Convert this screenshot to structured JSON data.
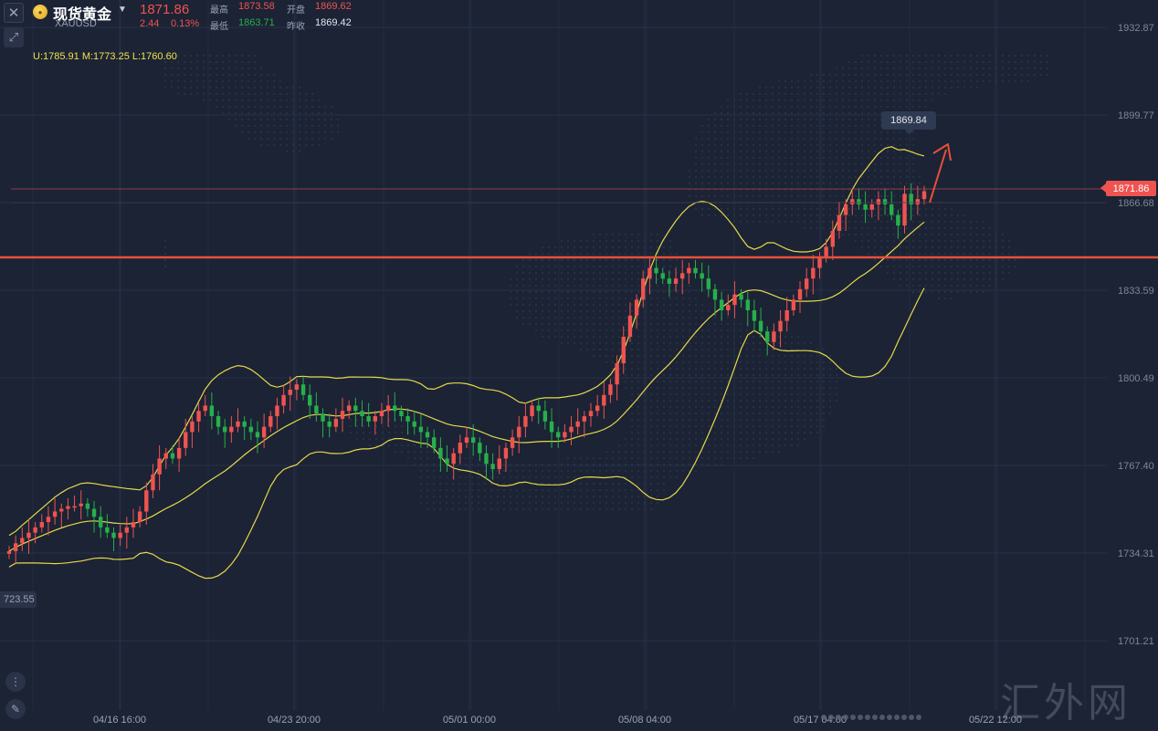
{
  "header": {
    "symbol_name": "现货黄金",
    "symbol_code": "XAUUSD",
    "last_price": "1871.86",
    "change": "2.44",
    "change_pct": "0.13%",
    "high_label": "最高",
    "high_value": "1873.58",
    "open_label": "开盘",
    "open_value": "1869.62",
    "low_label": "最低",
    "low_value": "1863.71",
    "prev_close_label": "昨收",
    "prev_close_value": "1869.42"
  },
  "indicator_readout": {
    "upper": "U:1785.91",
    "middle": "M:1773.25",
    "lower": "L:1760.60"
  },
  "current_price_tag": "1871.86",
  "high_tooltip": "1869.84",
  "left_axis_label": "723.55",
  "watermark": "汇外网",
  "colors": {
    "background": "#1b2335",
    "up": "#ef5350",
    "down": "#26b04a",
    "band": "#e7d94a",
    "resistance": "#e8503a"
  },
  "chart_data": {
    "type": "candlestick",
    "indicator": "Bollinger Bands",
    "y_ticks": [
      "1932.87",
      "1899.77",
      "1866.68",
      "1833.59",
      "1800.49",
      "1767.40",
      "1734.31",
      "1701.21"
    ],
    "x_ticks": [
      "04/16 16:00",
      "04/23 20:00",
      "05/01 00:00",
      "05/08 04:00",
      "05/17 04:00",
      "05/22 12:00"
    ],
    "horizontal_level": 1846,
    "current_price": 1871.86,
    "close_series": [
      1735,
      1738,
      1740,
      1742,
      1744,
      1746,
      1748,
      1750,
      1751,
      1752,
      1752,
      1753,
      1751,
      1748,
      1744,
      1742,
      1740,
      1742,
      1744,
      1746,
      1750,
      1758,
      1764,
      1770,
      1772,
      1770,
      1774,
      1780,
      1784,
      1788,
      1790,
      1786,
      1782,
      1780,
      1782,
      1784,
      1782,
      1780,
      1778,
      1782,
      1786,
      1790,
      1794,
      1796,
      1798,
      1794,
      1790,
      1787,
      1784,
      1782,
      1785,
      1788,
      1790,
      1788,
      1786,
      1784,
      1786,
      1788,
      1790,
      1788,
      1786,
      1784,
      1782,
      1780,
      1778,
      1774,
      1770,
      1768,
      1772,
      1776,
      1778,
      1776,
      1772,
      1768,
      1766,
      1770,
      1774,
      1778,
      1782,
      1786,
      1790,
      1788,
      1784,
      1780,
      1778,
      1780,
      1782,
      1784,
      1786,
      1788,
      1790,
      1794,
      1798,
      1806,
      1816,
      1824,
      1830,
      1838,
      1842,
      1840,
      1838,
      1836,
      1838,
      1840,
      1842,
      1840,
      1838,
      1834,
      1830,
      1826,
      1828,
      1832,
      1830,
      1826,
      1822,
      1818,
      1814,
      1818,
      1822,
      1826,
      1830,
      1834,
      1838,
      1842,
      1846,
      1850,
      1856,
      1862,
      1866,
      1868,
      1866,
      1864,
      1866,
      1868,
      1866,
      1862,
      1858,
      1870,
      1866,
      1868,
      1871
    ]
  }
}
